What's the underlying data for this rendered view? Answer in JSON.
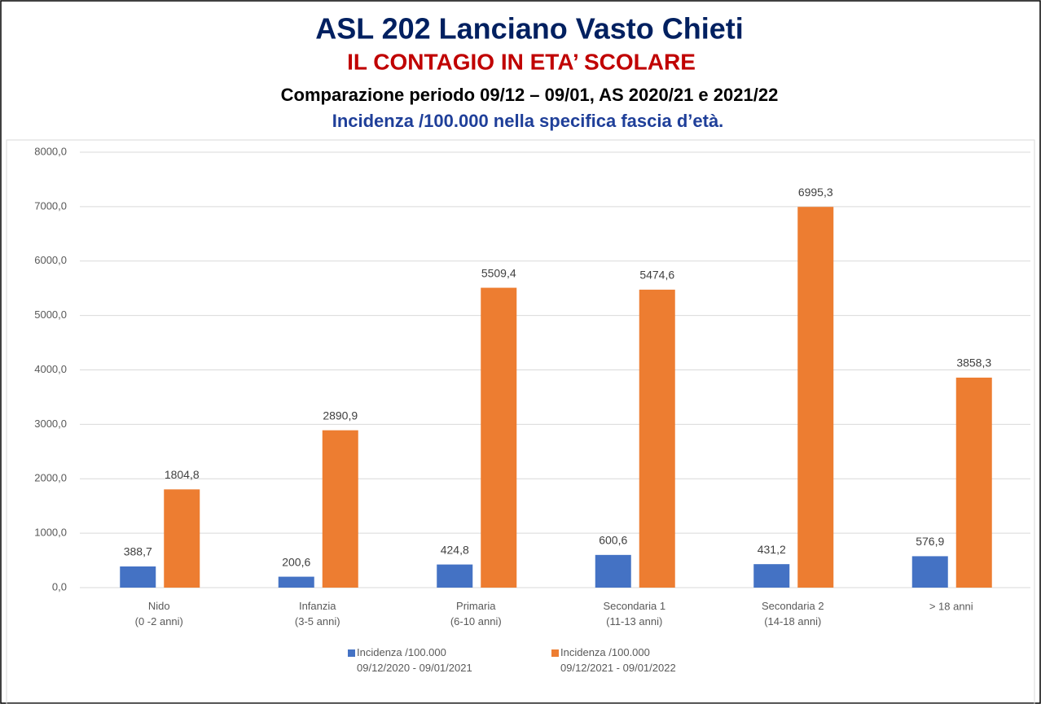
{
  "chart_data": {
    "type": "bar",
    "title": "ASL 202 Lanciano Vasto Chieti",
    "subtitle": "IL CONTAGIO IN ETA’ SCOLARE",
    "subtitle2": "Comparazione periodo 09/12 – 09/01, AS 2020/21 e 2021/22",
    "subtitle3": "Incidenza /100.000 nella specifica fascia d’età.",
    "categories": [
      "Nido\n(0 -2 anni)",
      "Infanzia\n(3-5 anni)",
      "Primaria\n(6-10 anni)",
      "Secondaria 1\n(11-13 anni)",
      "Secondaria 2\n(14-18 anni)",
      "> 18 anni"
    ],
    "series": [
      {
        "name": "Incidenza /100.000\n09/12/2020 - 09/01/2021",
        "color": "#4472c4",
        "values": [
          388.7,
          200.6,
          424.8,
          600.6,
          431.2,
          576.9
        ],
        "value_labels": [
          "388,7",
          "200,6",
          "424,8",
          "600,6",
          "431,2",
          "576,9"
        ]
      },
      {
        "name": "Incidenza /100.000\n09/12/2021 - 09/01/2022",
        "color": "#ed7d31",
        "values": [
          1804.8,
          2890.9,
          5509.4,
          5474.6,
          6995.3,
          3858.3
        ],
        "value_labels": [
          "1804,8",
          "2890,9",
          "5509,4",
          "5474,6",
          "6995,3",
          "3858,3"
        ]
      }
    ],
    "ylim": [
      0,
      8000
    ],
    "yticks": [
      {
        "value": 0,
        "label": "0,0"
      },
      {
        "value": 1000,
        "label": "1000,0"
      },
      {
        "value": 2000,
        "label": "2000,0"
      },
      {
        "value": 3000,
        "label": "3000,0"
      },
      {
        "value": 4000,
        "label": "4000,0"
      },
      {
        "value": 5000,
        "label": "5000,0"
      },
      {
        "value": 6000,
        "label": "6000,0"
      },
      {
        "value": 7000,
        "label": "7000,0"
      },
      {
        "value": 8000,
        "label": "8000,0"
      }
    ],
    "grid": true,
    "legend": "bottom"
  }
}
